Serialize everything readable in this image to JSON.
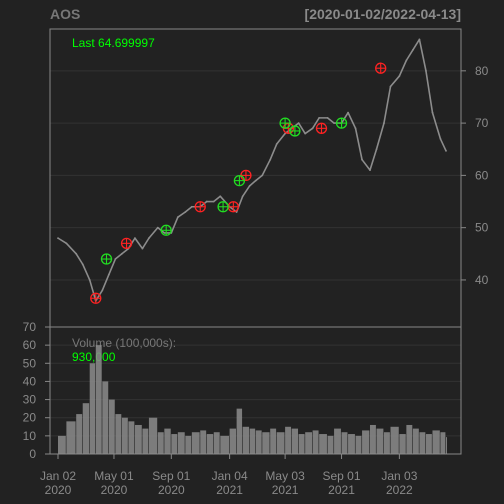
{
  "chart_data": {
    "type": "line",
    "subtype": "candlestick-with-volume",
    "title": "AOS",
    "date_range_label": "[2020-01-02/2022-04-13]",
    "last_label": "Last 64.699997",
    "price_axis": {
      "ylim": [
        31,
        88
      ],
      "ticks": [
        40,
        50,
        60,
        70,
        80
      ],
      "position": "right",
      "grid": true
    },
    "volume_axis": {
      "label": "Volume (100,000s):",
      "last_value": "930,000",
      "ylim": [
        0,
        70
      ],
      "ticks": [
        0,
        10,
        20,
        30,
        40,
        50,
        60,
        70
      ],
      "position": "left"
    },
    "x_ticks": [
      {
        "date": "2020-01-02",
        "line1": "Jan 02",
        "line2": "2020"
      },
      {
        "date": "2020-05-01",
        "line1": "May 01",
        "line2": "2020"
      },
      {
        "date": "2020-09-01",
        "line1": "Sep 01",
        "line2": "2020"
      },
      {
        "date": "2021-01-04",
        "line1": "Jan 04",
        "line2": "2021"
      },
      {
        "date": "2021-05-03",
        "line1": "May 03",
        "line2": "2021"
      },
      {
        "date": "2021-09-01",
        "line1": "Sep 01",
        "line2": "2021"
      },
      {
        "date": "2022-01-03",
        "line1": "Jan 03",
        "line2": "2022"
      }
    ],
    "x_range": [
      "2020-01-02",
      "2022-04-13"
    ],
    "price_series": {
      "x": [
        "2020-01-02",
        "2020-01-20",
        "2020-02-10",
        "2020-02-24",
        "2020-03-10",
        "2020-03-23",
        "2020-04-06",
        "2020-04-20",
        "2020-05-04",
        "2020-05-18",
        "2020-06-01",
        "2020-06-15",
        "2020-07-01",
        "2020-07-15",
        "2020-08-03",
        "2020-08-17",
        "2020-09-01",
        "2020-09-15",
        "2020-10-01",
        "2020-10-15",
        "2020-11-02",
        "2020-11-16",
        "2020-12-01",
        "2020-12-15",
        "2021-01-04",
        "2021-01-19",
        "2021-02-01",
        "2021-02-16",
        "2021-03-01",
        "2021-03-15",
        "2021-04-01",
        "2021-04-15",
        "2021-05-03",
        "2021-05-17",
        "2021-06-01",
        "2021-06-15",
        "2021-07-01",
        "2021-07-15",
        "2021-08-02",
        "2021-08-16",
        "2021-09-01",
        "2021-09-15",
        "2021-10-01",
        "2021-10-15",
        "2021-11-01",
        "2021-11-15",
        "2021-12-01",
        "2021-12-15",
        "2022-01-03",
        "2022-01-18",
        "2022-02-01",
        "2022-02-15",
        "2022-03-01",
        "2022-03-15",
        "2022-04-01",
        "2022-04-13"
      ],
      "close": [
        48,
        47,
        45,
        43,
        40,
        36,
        38,
        41,
        44,
        45,
        46,
        48,
        46,
        48,
        50,
        49,
        49,
        52,
        53,
        54,
        54,
        55,
        55,
        56,
        54,
        53,
        56,
        58,
        59,
        60,
        63,
        66,
        68,
        69,
        70,
        68,
        69,
        71,
        71,
        70,
        70,
        72,
        69,
        63,
        61,
        65,
        70,
        77,
        79,
        82,
        84,
        86,
        80,
        72,
        67,
        64.7
      ]
    },
    "markers": {
      "red": [
        {
          "date": "2020-03-23",
          "price": 36.5
        },
        {
          "date": "2020-05-28",
          "price": 47
        },
        {
          "date": "2020-11-02",
          "price": 54
        },
        {
          "date": "2021-01-12",
          "price": 54
        },
        {
          "date": "2021-02-08",
          "price": 60
        },
        {
          "date": "2021-05-10",
          "price": 69
        },
        {
          "date": "2021-07-20",
          "price": 69
        },
        {
          "date": "2021-11-24",
          "price": 80.5
        }
      ],
      "green": [
        {
          "date": "2020-04-15",
          "price": 44
        },
        {
          "date": "2020-08-21",
          "price": 49.5
        },
        {
          "date": "2020-12-21",
          "price": 54
        },
        {
          "date": "2021-01-25",
          "price": 59
        },
        {
          "date": "2021-05-03",
          "price": 70
        },
        {
          "date": "2021-05-24",
          "price": 68.5
        },
        {
          "date": "2021-09-01",
          "price": 70
        }
      ]
    },
    "volume_series": {
      "x": [
        "2020-01-02",
        "2020-01-20",
        "2020-02-10",
        "2020-02-24",
        "2020-03-10",
        "2020-03-23",
        "2020-04-06",
        "2020-04-20",
        "2020-05-04",
        "2020-05-18",
        "2020-06-01",
        "2020-06-15",
        "2020-07-01",
        "2020-07-15",
        "2020-08-03",
        "2020-08-17",
        "2020-09-01",
        "2020-09-15",
        "2020-10-01",
        "2020-10-15",
        "2020-11-02",
        "2020-11-16",
        "2020-12-01",
        "2020-12-15",
        "2021-01-04",
        "2021-01-19",
        "2021-02-01",
        "2021-02-16",
        "2021-03-01",
        "2021-03-15",
        "2021-04-01",
        "2021-04-15",
        "2021-05-03",
        "2021-05-17",
        "2021-06-01",
        "2021-06-15",
        "2021-07-01",
        "2021-07-15",
        "2021-08-02",
        "2021-08-16",
        "2021-09-01",
        "2021-09-15",
        "2021-10-01",
        "2021-10-15",
        "2021-11-01",
        "2021-11-15",
        "2021-12-01",
        "2021-12-15",
        "2022-01-03",
        "2022-01-18",
        "2022-02-01",
        "2022-02-15",
        "2022-03-01",
        "2022-03-15",
        "2022-04-01",
        "2022-04-13"
      ],
      "values": [
        10,
        18,
        22,
        28,
        50,
        60,
        40,
        30,
        22,
        20,
        18,
        16,
        14,
        20,
        12,
        14,
        11,
        12,
        10,
        12,
        13,
        11,
        12,
        10,
        14,
        25,
        15,
        14,
        13,
        12,
        14,
        12,
        15,
        14,
        11,
        12,
        13,
        11,
        10,
        14,
        12,
        11,
        10,
        13,
        16,
        14,
        12,
        15,
        11,
        16,
        14,
        12,
        11,
        13,
        12,
        9.3
      ]
    },
    "colors": {
      "background": "#222222",
      "panel_border": "#888888",
      "grid": "#333333",
      "text": "#8a8a8a",
      "accent_green": "#00ff00",
      "marker_red": "#ff2222",
      "marker_green": "#22dd22",
      "price_line": "#8c8c8c",
      "volume_bars": "#8c8c8c"
    }
  }
}
